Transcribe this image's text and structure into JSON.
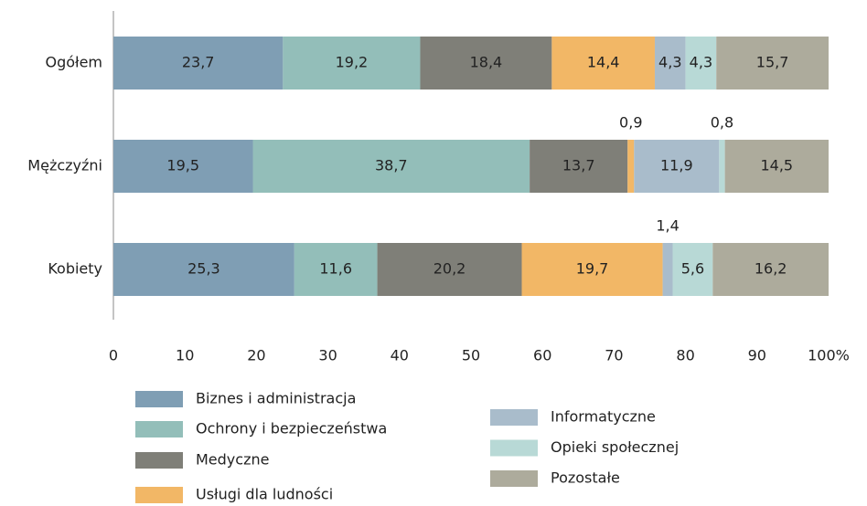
{
  "chart_data": {
    "type": "stacked-bar-horizontal",
    "categories": [
      "Ogółem",
      "Mężczyźni",
      "Kobiety"
    ],
    "series": [
      {
        "name": "Biznes i administracja",
        "color": "#7f9eb4",
        "values": [
          23.7,
          19.5,
          25.3
        ],
        "value_labels": [
          "23,7",
          "19,5",
          "25,3"
        ]
      },
      {
        "name": "Ochrony i bezpieczeństwa",
        "color": "#93beb9",
        "values": [
          19.2,
          38.7,
          11.6
        ],
        "value_labels": [
          "19,2",
          "38,7",
          "11,6"
        ]
      },
      {
        "name": "Medyczne",
        "color": "#7f7f78",
        "values": [
          18.4,
          13.7,
          20.2
        ],
        "value_labels": [
          "18,4",
          "13,7",
          "20,2"
        ]
      },
      {
        "name": "Usługi dla ludności",
        "color": "#f2b766",
        "values": [
          14.4,
          0.9,
          19.7
        ],
        "value_labels": [
          "14,4",
          "0,9",
          "19,7"
        ]
      },
      {
        "name": "Informatyczne",
        "color": "#a9bccb",
        "values": [
          4.3,
          11.9,
          1.4
        ],
        "value_labels": [
          "4,3",
          "11,9",
          "1,4"
        ]
      },
      {
        "name": "Opieki społecznej",
        "color": "#b8d9d6",
        "values": [
          4.3,
          0.8,
          5.6
        ],
        "value_labels": [
          "4,3",
          "0,8",
          "5,6"
        ]
      },
      {
        "name": "Pozostałe",
        "color": "#adab9c",
        "values": [
          15.7,
          14.5,
          16.2
        ],
        "value_labels": [
          "15,7",
          "14,5",
          "16,2"
        ]
      }
    ],
    "xlim": [
      0,
      100
    ],
    "xticks": [
      0,
      10,
      20,
      30,
      40,
      50,
      60,
      70,
      80,
      90,
      {
        "value": 100,
        "label": "100%"
      }
    ]
  }
}
